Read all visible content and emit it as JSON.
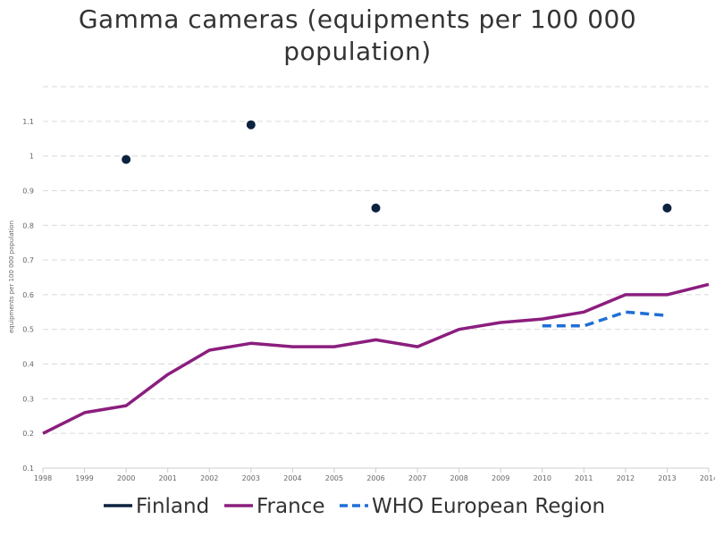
{
  "chart_data": {
    "type": "line",
    "title_line1": "Gamma cameras (equipments per 100 000",
    "title_line2": "population)",
    "ylabel": "equipments per 100 000 population",
    "xlabel": "",
    "x": [
      1998,
      1999,
      2000,
      2001,
      2002,
      2003,
      2004,
      2005,
      2006,
      2007,
      2008,
      2009,
      2010,
      2011,
      2012,
      2013,
      2014
    ],
    "x_tick_labels": [
      "1998",
      "1999",
      "2000",
      "2001",
      "2002",
      "2003",
      "2004",
      "2005",
      "2006",
      "2007",
      "2008",
      "2009",
      "2010",
      "2011",
      "2012",
      "2013",
      "2014"
    ],
    "y_ticks": [
      0.1,
      0.2,
      0.3,
      0.4,
      0.5,
      0.6,
      0.7,
      0.8,
      0.9,
      1,
      1.1,
      1.2
    ],
    "y_tick_labels": [
      "0.1",
      "0.2",
      "0.3",
      "0.4",
      "0.5",
      "0.6",
      "0.7",
      "0.8",
      "0.9",
      "1",
      "1.1",
      ""
    ],
    "ylim": [
      0.1,
      1.2
    ],
    "xlim": [
      1998,
      2014
    ],
    "grid": true,
    "legend_placement": "bottom",
    "series": [
      {
        "name": "Finland",
        "color": "#0d2240",
        "style": "points",
        "x": [
          2000,
          2003,
          2006,
          2013
        ],
        "y": [
          0.99,
          1.09,
          0.85,
          0.85
        ]
      },
      {
        "name": "France",
        "color": "#8b1e7e",
        "style": "solid",
        "x": [
          1998,
          1999,
          2000,
          2001,
          2002,
          2003,
          2004,
          2005,
          2006,
          2007,
          2008,
          2009,
          2010,
          2011,
          2012,
          2013,
          2014
        ],
        "y": [
          0.2,
          0.26,
          0.28,
          0.37,
          0.44,
          0.46,
          0.45,
          0.45,
          0.47,
          0.45,
          0.5,
          0.52,
          0.53,
          0.55,
          0.6,
          0.6,
          0.63
        ]
      },
      {
        "name": "WHO European Region",
        "color": "#1f6fd6",
        "style": "dashed",
        "x": [
          2010,
          2011,
          2012,
          2013
        ],
        "y": [
          0.51,
          0.51,
          0.55,
          0.54
        ]
      }
    ]
  }
}
